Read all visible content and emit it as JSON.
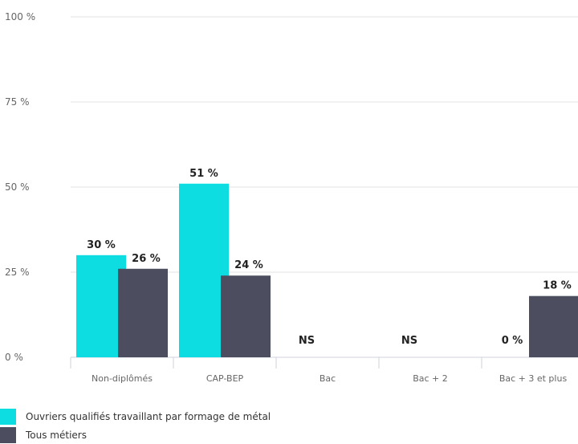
{
  "chart_data": {
    "type": "bar",
    "categories": [
      "Non-diplômés",
      "CAP-BEP",
      "Bac",
      "Bac + 2",
      "Bac + 3 et plus"
    ],
    "series": [
      {
        "name": "Ouvriers qualifiés travaillant par formage de métal",
        "color": "#0ddde0",
        "values": [
          30,
          51,
          null,
          null,
          0
        ],
        "labels": [
          "30 %",
          "51 %",
          "NS",
          "NS",
          "0 %"
        ]
      },
      {
        "name": "Tous métiers",
        "color": "#4c4e60",
        "values": [
          26,
          24,
          null,
          null,
          18
        ],
        "labels": [
          "26 %",
          "24 %",
          "",
          "",
          "18 %"
        ]
      }
    ],
    "ylim": [
      0,
      100
    ],
    "yticks": [
      0,
      25,
      50,
      75,
      100
    ],
    "ytick_labels": [
      "0 %",
      "25 %",
      "50 %",
      "75 %",
      "100 %"
    ],
    "grid": true,
    "legend_position": "bottom-left"
  }
}
